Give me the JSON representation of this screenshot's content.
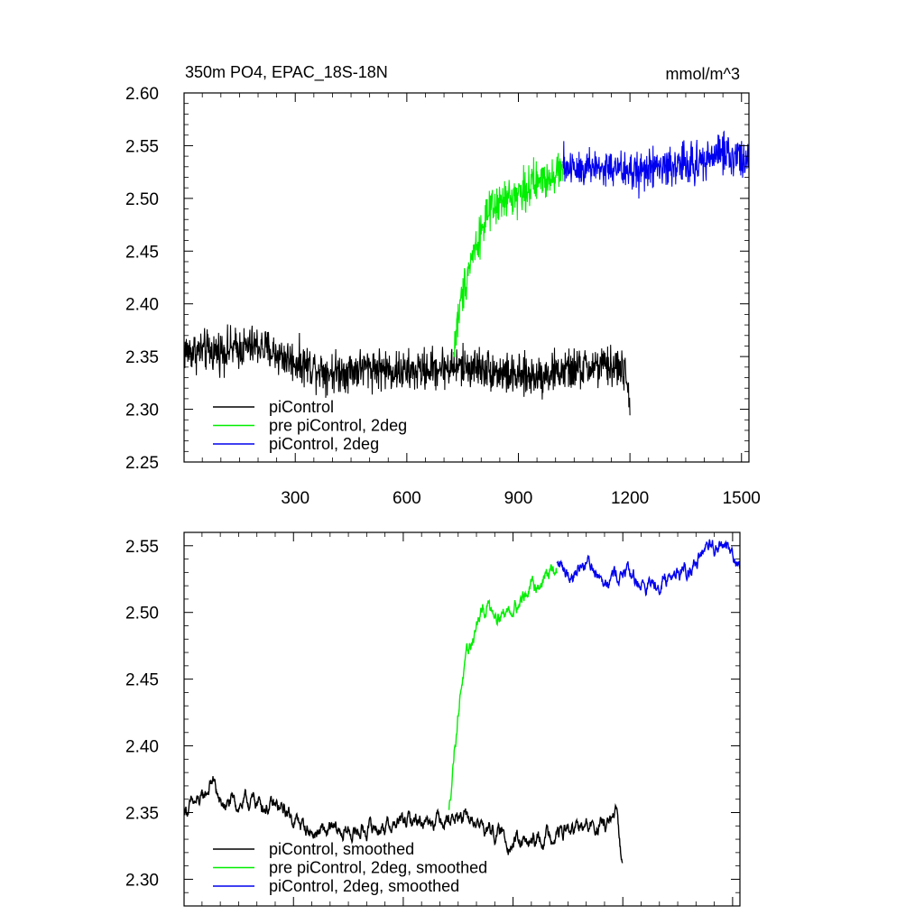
{
  "figure": {
    "title_left": "350m PO4, EPAC_18S-18N",
    "title_right": "mmol/m^3"
  },
  "chart_data": [
    {
      "type": "line",
      "title": "350m PO4, EPAC_18S-18N",
      "units": "mmol/m^3",
      "xlim": [
        1,
        1520
      ],
      "ylim": [
        2.25,
        2.6
      ],
      "x_ticks": [
        300,
        600,
        900,
        1200,
        1500
      ],
      "x_tick_labels": [
        "300",
        "600",
        "900",
        "1200",
        "1500"
      ],
      "y_ticks": [
        2.25,
        2.3,
        2.35,
        2.4,
        2.45,
        2.5,
        2.55,
        2.6
      ],
      "y_tick_labels": [
        "2.25",
        "2.30",
        "2.35",
        "2.40",
        "2.45",
        "2.50",
        "2.55",
        "2.60"
      ],
      "legend_placement": "bottom-left",
      "noise_amplitude": 0.015,
      "series": [
        {
          "name": "piControl",
          "color": "#000000",
          "anchors": [
            [
              1,
              2.355
            ],
            [
              80,
              2.355
            ],
            [
              200,
              2.36
            ],
            [
              300,
              2.345
            ],
            [
              400,
              2.335
            ],
            [
              500,
              2.34
            ],
            [
              600,
              2.335
            ],
            [
              700,
              2.34
            ],
            [
              800,
              2.34
            ],
            [
              900,
              2.33
            ],
            [
              1000,
              2.335
            ],
            [
              1100,
              2.34
            ],
            [
              1180,
              2.34
            ],
            [
              1200,
              2.31
            ]
          ]
        },
        {
          "name": "pre piControl, 2deg",
          "color": "#00ee00",
          "anchors": [
            [
              725,
              2.35
            ],
            [
              735,
              2.38
            ],
            [
              750,
              2.41
            ],
            [
              770,
              2.44
            ],
            [
              790,
              2.46
            ],
            [
              810,
              2.48
            ],
            [
              850,
              2.495
            ],
            [
              900,
              2.505
            ],
            [
              950,
              2.515
            ],
            [
              1000,
              2.525
            ],
            [
              1020,
              2.527
            ]
          ]
        },
        {
          "name": "piControl, 2deg",
          "color": "#0000ee",
          "anchors": [
            [
              1020,
              2.53
            ],
            [
              1100,
              2.53
            ],
            [
              1200,
              2.525
            ],
            [
              1300,
              2.53
            ],
            [
              1400,
              2.535
            ],
            [
              1450,
              2.545
            ],
            [
              1520,
              2.535
            ]
          ]
        }
      ]
    },
    {
      "type": "line",
      "xlim": [
        1,
        1520
      ],
      "ylim": [
        2.28,
        2.56
      ],
      "x_ticks": [
        300,
        600,
        900,
        1200,
        1500
      ],
      "y_ticks": [
        2.3,
        2.35,
        2.4,
        2.45,
        2.5,
        2.55
      ],
      "y_tick_labels": [
        "2.30",
        "2.35",
        "2.40",
        "2.45",
        "2.50",
        "2.55"
      ],
      "legend_placement": "bottom-left",
      "noise_amplitude": 0.006,
      "series": [
        {
          "name": "piControl, smoothed",
          "color": "#000000",
          "anchors": [
            [
              1,
              2.352
            ],
            [
              50,
              2.358
            ],
            [
              80,
              2.375
            ],
            [
              100,
              2.355
            ],
            [
              200,
              2.358
            ],
            [
              280,
              2.35
            ],
            [
              350,
              2.335
            ],
            [
              450,
              2.335
            ],
            [
              550,
              2.34
            ],
            [
              650,
              2.345
            ],
            [
              720,
              2.348
            ],
            [
              800,
              2.342
            ],
            [
              900,
              2.328
            ],
            [
              950,
              2.325
            ],
            [
              1000,
              2.335
            ],
            [
              1100,
              2.338
            ],
            [
              1150,
              2.34
            ],
            [
              1185,
              2.345
            ],
            [
              1195,
              2.315
            ],
            [
              1200,
              2.32
            ]
          ]
        },
        {
          "name": "pre piControl, 2deg, smoothed",
          "color": "#00ee00",
          "anchors": [
            [
              725,
              2.35
            ],
            [
              740,
              2.4
            ],
            [
              760,
              2.45
            ],
            [
              780,
              2.47
            ],
            [
              800,
              2.49
            ],
            [
              830,
              2.505
            ],
            [
              880,
              2.5
            ],
            [
              920,
              2.51
            ],
            [
              960,
              2.52
            ],
            [
              1000,
              2.53
            ],
            [
              1020,
              2.53
            ]
          ]
        },
        {
          "name": "piControl, 2deg, smoothed",
          "color": "#0000ee",
          "anchors": [
            [
              1020,
              2.535
            ],
            [
              1060,
              2.53
            ],
            [
              1100,
              2.538
            ],
            [
              1150,
              2.528
            ],
            [
              1200,
              2.53
            ],
            [
              1260,
              2.52
            ],
            [
              1300,
              2.525
            ],
            [
              1350,
              2.53
            ],
            [
              1400,
              2.538
            ],
            [
              1440,
              2.545
            ],
            [
              1470,
              2.552
            ],
            [
              1500,
              2.545
            ],
            [
              1520,
              2.535
            ]
          ]
        }
      ]
    }
  ]
}
